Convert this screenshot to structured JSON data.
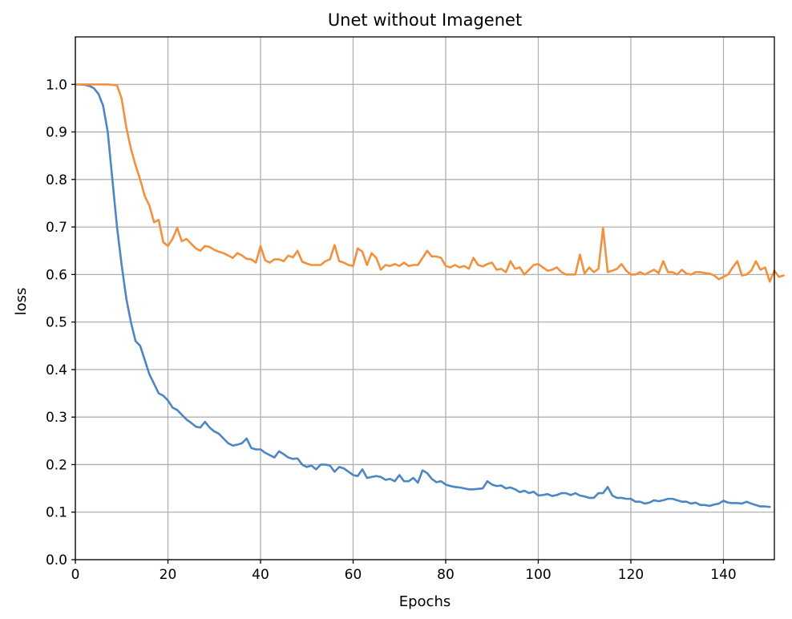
{
  "chart_data": {
    "type": "line",
    "title": "Unet without Imagenet",
    "xlabel": "Epochs",
    "ylabel": "loss",
    "xlim": [
      0,
      151
    ],
    "ylim": [
      0.0,
      1.1
    ],
    "xticks": [
      0,
      20,
      40,
      60,
      80,
      100,
      120,
      140
    ],
    "yticks": [
      0.0,
      0.1,
      0.2,
      0.3,
      0.4,
      0.5,
      0.6,
      0.7,
      0.8,
      0.9,
      1.0
    ],
    "ytick_labels": [
      "0.0",
      "0.1",
      "0.2",
      "0.3",
      "0.4",
      "0.5",
      "0.6",
      "0.7",
      "0.8",
      "0.9",
      "1.0"
    ],
    "grid": true,
    "legend": "none",
    "series": [
      {
        "color": "#4c86c3",
        "values": [
          1.0,
          1.0,
          0.999,
          0.997,
          0.992,
          0.98,
          0.955,
          0.9,
          0.8,
          0.7,
          0.62,
          0.55,
          0.5,
          0.46,
          0.45,
          0.42,
          0.39,
          0.37,
          0.35,
          0.345,
          0.335,
          0.32,
          0.315,
          0.305,
          0.295,
          0.288,
          0.28,
          0.278,
          0.29,
          0.278,
          0.27,
          0.265,
          0.255,
          0.245,
          0.24,
          0.242,
          0.245,
          0.255,
          0.235,
          0.232,
          0.232,
          0.225,
          0.22,
          0.215,
          0.228,
          0.222,
          0.215,
          0.212,
          0.213,
          0.2,
          0.195,
          0.198,
          0.19,
          0.2,
          0.2,
          0.198,
          0.185,
          0.195,
          0.192,
          0.185,
          0.178,
          0.176,
          0.19,
          0.172,
          0.174,
          0.176,
          0.174,
          0.168,
          0.17,
          0.165,
          0.178,
          0.165,
          0.165,
          0.172,
          0.162,
          0.188,
          0.182,
          0.17,
          0.163,
          0.165,
          0.158,
          0.155,
          0.153,
          0.152,
          0.15,
          0.148,
          0.148,
          0.149,
          0.15,
          0.165,
          0.158,
          0.155,
          0.156,
          0.15,
          0.152,
          0.148,
          0.142,
          0.145,
          0.14,
          0.143,
          0.135,
          0.136,
          0.138,
          0.134,
          0.136,
          0.14,
          0.14,
          0.136,
          0.14,
          0.135,
          0.133,
          0.13,
          0.13,
          0.14,
          0.14,
          0.153,
          0.135,
          0.13,
          0.13,
          0.128,
          0.128,
          0.122,
          0.122,
          0.118,
          0.12,
          0.125,
          0.123,
          0.125,
          0.128,
          0.128,
          0.125,
          0.122,
          0.122,
          0.118,
          0.12,
          0.115,
          0.115,
          0.113,
          0.116,
          0.118,
          0.124,
          0.12,
          0.119,
          0.119,
          0.118,
          0.122,
          0.118,
          0.115,
          0.112,
          0.112,
          0.111
        ]
      },
      {
        "color": "#f2913d",
        "values": [
          1.0,
          1.0,
          1.0,
          1.0,
          1.0,
          1.0,
          1.0,
          1.0,
          0.999,
          0.998,
          0.97,
          0.91,
          0.865,
          0.83,
          0.8,
          0.765,
          0.745,
          0.71,
          0.715,
          0.668,
          0.66,
          0.675,
          0.698,
          0.67,
          0.675,
          0.665,
          0.655,
          0.65,
          0.66,
          0.658,
          0.652,
          0.648,
          0.645,
          0.64,
          0.635,
          0.645,
          0.64,
          0.633,
          0.632,
          0.625,
          0.66,
          0.63,
          0.625,
          0.632,
          0.632,
          0.628,
          0.64,
          0.636,
          0.65,
          0.627,
          0.623,
          0.62,
          0.62,
          0.62,
          0.628,
          0.632,
          0.662,
          0.628,
          0.625,
          0.62,
          0.618,
          0.655,
          0.648,
          0.62,
          0.645,
          0.635,
          0.61,
          0.62,
          0.618,
          0.622,
          0.618,
          0.625,
          0.618,
          0.62,
          0.62,
          0.635,
          0.65,
          0.638,
          0.638,
          0.635,
          0.618,
          0.615,
          0.62,
          0.615,
          0.618,
          0.612,
          0.635,
          0.62,
          0.617,
          0.622,
          0.625,
          0.61,
          0.612,
          0.605,
          0.628,
          0.612,
          0.615,
          0.6,
          0.61,
          0.62,
          0.622,
          0.615,
          0.608,
          0.61,
          0.615,
          0.605,
          0.6,
          0.6,
          0.6,
          0.642,
          0.602,
          0.615,
          0.605,
          0.612,
          0.698,
          0.605,
          0.608,
          0.612,
          0.622,
          0.608,
          0.6,
          0.6,
          0.605,
          0.6,
          0.605,
          0.61,
          0.603,
          0.628,
          0.605,
          0.605,
          0.6,
          0.61,
          0.602,
          0.6,
          0.605,
          0.605,
          0.603,
          0.602,
          0.598,
          0.59,
          0.595,
          0.6,
          0.615,
          0.628,
          0.598,
          0.6,
          0.608,
          0.628,
          0.61,
          0.615,
          0.585,
          0.608,
          0.595,
          0.598
        ]
      }
    ]
  }
}
